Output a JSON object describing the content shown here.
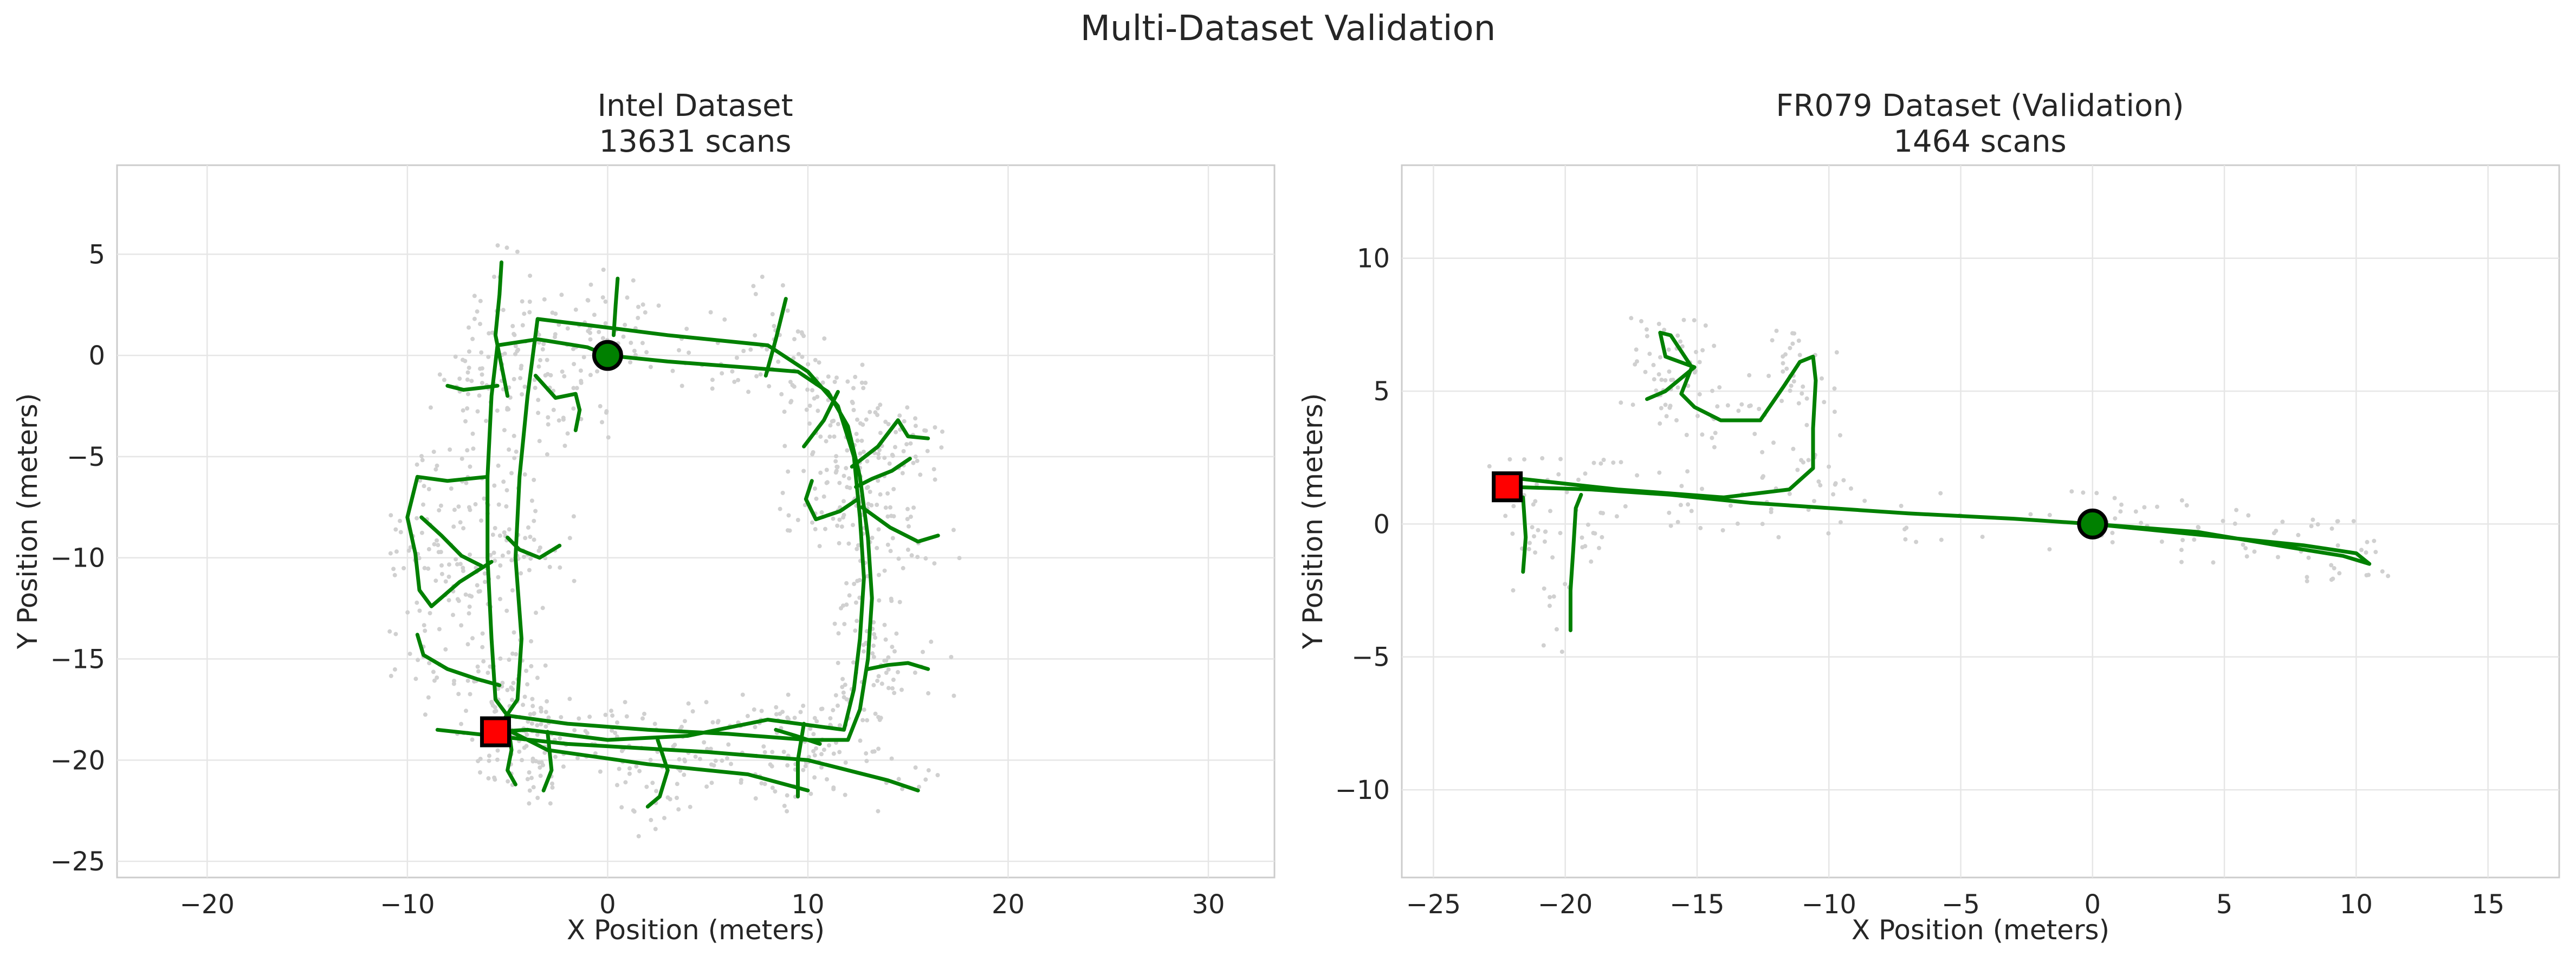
{
  "figure": {
    "title": "Multi-Dataset Validation"
  },
  "chart_data": [
    {
      "type": "scatter",
      "title": "Intel Dataset",
      "subtitle": "13631 scans",
      "xlabel": "X Position (meters)",
      "ylabel": "Y Position (meters)",
      "xlim": [
        -24.5,
        33.3
      ],
      "ylim": [
        -25.8,
        9.4
      ],
      "xticks": [
        -20,
        -10,
        0,
        10,
        20,
        30
      ],
      "yticks": [
        -25,
        -20,
        -15,
        -10,
        -5,
        0,
        5
      ],
      "grid": true,
      "colors": {
        "trajectory": "#008000",
        "points": "#d0d0d0",
        "start": "#008000",
        "end": "#ff0000"
      },
      "start_marker": {
        "shape": "circle",
        "x": 0,
        "y": 0
      },
      "end_marker": {
        "shape": "square",
        "x": -5.6,
        "y": -18.6
      },
      "trajectory": [
        [
          0,
          0
        ],
        [
          3,
          -0.3
        ],
        [
          7,
          -0.6
        ],
        [
          9.5,
          -0.8
        ],
        [
          11,
          -1.8
        ],
        [
          12,
          -3.5
        ],
        [
          12.6,
          -6
        ],
        [
          13,
          -9
        ],
        [
          13.2,
          -12
        ],
        [
          13,
          -15
        ],
        [
          12.6,
          -17.5
        ],
        [
          12,
          -19
        ],
        [
          10,
          -19
        ],
        [
          6,
          -18.7
        ],
        [
          2,
          -18.5
        ],
        [
          -2,
          -18.2
        ],
        [
          -5,
          -17.8
        ],
        [
          -5.6,
          -17
        ],
        [
          -5.8,
          -14
        ],
        [
          -6,
          -10
        ],
        [
          -6,
          -6
        ],
        [
          -5.8,
          -2
        ],
        [
          -5.5,
          0.5
        ],
        [
          -3.5,
          0.8
        ],
        [
          -1,
          0.4
        ],
        [
          0,
          0
        ]
      ],
      "trajectory_extra": [
        [
          [
            -5.6,
            -18.6
          ],
          [
            -4.5,
            -17
          ],
          [
            -4.3,
            -14
          ],
          [
            -4.6,
            -10
          ],
          [
            -4.4,
            -6
          ],
          [
            -4,
            -2
          ],
          [
            -3.5,
            1.8
          ],
          [
            -1,
            1.5
          ],
          [
            3,
            1
          ],
          [
            8,
            0.5
          ],
          [
            10,
            -0.8
          ],
          [
            11.5,
            -2.5
          ],
          [
            12.3,
            -5
          ],
          [
            12.6,
            -8
          ],
          [
            12.8,
            -11
          ],
          [
            12.6,
            -14
          ],
          [
            12.3,
            -16.5
          ],
          [
            11.8,
            -18.5
          ],
          [
            8,
            -18
          ],
          [
            4,
            -18.8
          ],
          [
            0,
            -19
          ],
          [
            -4,
            -18.5
          ],
          [
            -5.6,
            -18.6
          ]
        ],
        [
          [
            -8.5,
            -18.5
          ],
          [
            -2,
            -19.2
          ],
          [
            5,
            -19.6
          ],
          [
            10,
            -20
          ],
          [
            14,
            -21
          ],
          [
            15.5,
            -21.5
          ]
        ],
        [
          [
            -6,
            -18
          ],
          [
            -3,
            -19.5
          ],
          [
            2,
            -20.2
          ],
          [
            7,
            -20.7
          ],
          [
            10,
            -21.5
          ]
        ],
        [
          [
            13,
            -15.5
          ],
          [
            14,
            -15.3
          ],
          [
            15,
            -15.2
          ],
          [
            16,
            -15.5
          ]
        ],
        [
          [
            9.5,
            -21.8
          ],
          [
            9.5,
            -20
          ],
          [
            9.8,
            -18.2
          ]
        ],
        [
          [
            2.5,
            -19
          ],
          [
            3,
            -20.5
          ],
          [
            2.6,
            -21.8
          ],
          [
            2,
            -22.3
          ]
        ],
        [
          [
            -3,
            -18.6
          ],
          [
            -2.8,
            -20.5
          ],
          [
            -3.2,
            -21.5
          ]
        ],
        [
          [
            -5,
            -18
          ],
          [
            -4.8,
            -19.5
          ],
          [
            -5,
            -20.5
          ],
          [
            -4.6,
            -21.2
          ]
        ],
        [
          [
            -9.5,
            -13.8
          ],
          [
            -9.2,
            -14.8
          ],
          [
            -8,
            -15.5
          ],
          [
            -6.5,
            -16
          ],
          [
            -5.4,
            -16.3
          ]
        ],
        [
          [
            -5,
            -2
          ],
          [
            -5.6,
            1
          ],
          [
            -5.4,
            3
          ],
          [
            -5.3,
            4.6
          ]
        ],
        [
          [
            -5.5,
            -1.5
          ],
          [
            -6.3,
            -1.6
          ],
          [
            -7.2,
            -1.7
          ],
          [
            -8,
            -1.5
          ]
        ],
        [
          [
            -3.6,
            -1
          ],
          [
            -2.6,
            -2.1
          ],
          [
            -1.6,
            -1.9
          ],
          [
            -1.4,
            -2.7
          ],
          [
            -1.6,
            -3.7
          ]
        ],
        [
          [
            0.5,
            3.8
          ],
          [
            0.4,
            2.5
          ],
          [
            0.3,
            1
          ]
        ],
        [
          [
            -6,
            -6
          ],
          [
            -8,
            -6.2
          ],
          [
            -9.5,
            -6
          ],
          [
            -10,
            -8
          ],
          [
            -9.6,
            -9.8
          ],
          [
            -9.4,
            -11.6
          ],
          [
            -8.8,
            -12.4
          ],
          [
            -7.4,
            -11.2
          ],
          [
            -5.8,
            -10.2
          ]
        ],
        [
          [
            -9.3,
            -8
          ],
          [
            -8.3,
            -8.9
          ],
          [
            -7.3,
            -9.9
          ],
          [
            -6.3,
            -10.4
          ]
        ],
        [
          [
            -5,
            -9
          ],
          [
            -4.4,
            -9.6
          ],
          [
            -3.4,
            -10
          ],
          [
            -2.4,
            -9.4
          ]
        ],
        [
          [
            9.8,
            -4.5
          ],
          [
            10.8,
            -3.2
          ],
          [
            11.5,
            -1.8
          ]
        ],
        [
          [
            12.2,
            -5.5
          ],
          [
            13.5,
            -4.5
          ],
          [
            14.5,
            -3.2
          ],
          [
            15,
            -4
          ],
          [
            16,
            -4.1
          ]
        ],
        [
          [
            12.4,
            -6.5
          ],
          [
            13.2,
            -6.1
          ],
          [
            14.2,
            -5.7
          ],
          [
            15.1,
            -5.1
          ]
        ],
        [
          [
            10.2,
            -6.2
          ],
          [
            9.9,
            -7.1
          ],
          [
            10.4,
            -8.1
          ],
          [
            11.6,
            -7.7
          ],
          [
            12.5,
            -7.1
          ]
        ],
        [
          [
            12.7,
            -7.5
          ],
          [
            14.1,
            -8.5
          ],
          [
            15.5,
            -9.2
          ],
          [
            16.5,
            -8.9
          ]
        ],
        [
          [
            8.4,
            -18.5
          ],
          [
            9.4,
            -18.8
          ],
          [
            10.6,
            -19.2
          ]
        ],
        [
          [
            8.9,
            2.8
          ],
          [
            8.4,
            0.8
          ],
          [
            7.9,
            -1
          ]
        ]
      ],
      "map_points": "approx. 13631 scans (light grey point cloud), not individually readable"
    },
    {
      "type": "scatter",
      "title": "FR079 Dataset (Validation)",
      "subtitle": "1464 scans",
      "xlabel": "X Position (meters)",
      "ylabel": "Y Position (meters)",
      "xlim": [
        -26.2,
        17.7
      ],
      "ylim": [
        -13.3,
        13.5
      ],
      "xticks": [
        -25,
        -20,
        -15,
        -10,
        -5,
        0,
        5,
        10,
        15
      ],
      "yticks": [
        -10,
        -5,
        0,
        5,
        10
      ],
      "grid": true,
      "colors": {
        "trajectory": "#008000",
        "points": "#d0d0d0",
        "start": "#008000",
        "end": "#ff0000"
      },
      "start_marker": {
        "shape": "circle",
        "x": 0,
        "y": 0
      },
      "end_marker": {
        "shape": "square",
        "x": -22.2,
        "y": 1.4
      },
      "trajectory": [
        [
          0,
          0
        ],
        [
          2,
          -0.2
        ],
        [
          5,
          -0.5
        ],
        [
          8,
          -0.8
        ],
        [
          10,
          -1.1
        ],
        [
          10.5,
          -1.5
        ],
        [
          9.5,
          -1.2
        ],
        [
          7,
          -0.8
        ],
        [
          4,
          -0.3
        ],
        [
          0,
          0
        ],
        [
          -3,
          0.2
        ],
        [
          -7,
          0.4
        ],
        [
          -10,
          0.6
        ],
        [
          -13,
          0.8
        ],
        [
          -16,
          1.1
        ],
        [
          -19,
          1.3
        ],
        [
          -22.2,
          1.4
        ]
      ],
      "trajectory_extra": [
        [
          [
            -22.6,
            1.8
          ],
          [
            -18,
            1.3
          ],
          [
            -14,
            1
          ],
          [
            -11.5,
            1.3
          ],
          [
            -10.6,
            2.1
          ],
          [
            -10.6,
            3.6
          ],
          [
            -10.5,
            5.4
          ],
          [
            -10.6,
            6.3
          ],
          [
            -11.1,
            6.1
          ],
          [
            -11.7,
            5.2
          ],
          [
            -12.6,
            3.9
          ],
          [
            -14.1,
            3.9
          ],
          [
            -15.1,
            4.4
          ],
          [
            -15.6,
            4.9
          ],
          [
            -15.2,
            5.9
          ],
          [
            -16,
            7.1
          ],
          [
            -16.4,
            7.2
          ],
          [
            -16.2,
            6.3
          ],
          [
            -15.1,
            5.9
          ],
          [
            -16.2,
            5
          ],
          [
            -16.9,
            4.7
          ]
        ],
        [
          [
            -21.6,
            1
          ],
          [
            -21.5,
            -0.5
          ],
          [
            -21.6,
            -1.8
          ]
        ],
        [
          [
            -19.8,
            -4
          ],
          [
            -19.8,
            -2.5
          ],
          [
            -19.7,
            -1
          ],
          [
            -19.6,
            0.6
          ],
          [
            -19.4,
            1.1
          ]
        ]
      ],
      "map_points": "approx. 1464 scans (light grey point cloud), not individually readable"
    }
  ]
}
